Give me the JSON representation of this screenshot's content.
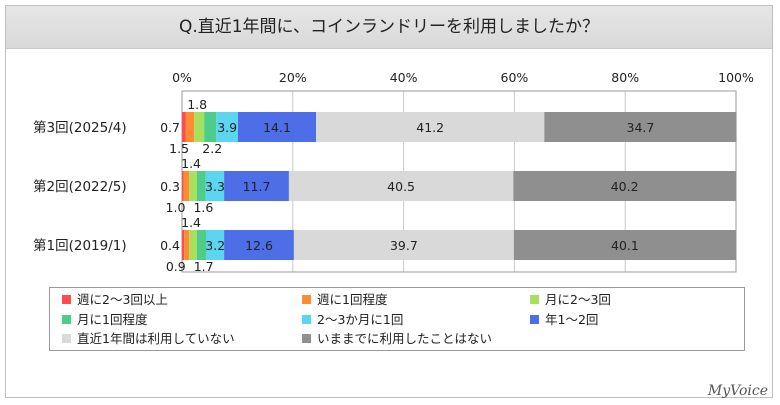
{
  "title": "Q.直近1年間に、コインランドリーを利用しましたか？",
  "brand": "MyVoice",
  "colors": {
    "s1": "#ff4d4d",
    "s2": "#ff8c33",
    "s3": "#a6e05c",
    "s4": "#4dcc8c",
    "s5": "#5cd6f0",
    "s6": "#4d6ee6",
    "s7": "#d9d9d9",
    "s8": "#8f8f8f"
  },
  "chart_data": {
    "type": "bar",
    "orientation": "horizontal",
    "stacked": "percent",
    "title": "Q.直近1年間に、コインランドリーを利用しましたか？",
    "categories": [
      "第3回(2025/4)",
      "第2回(2022/5)",
      "第1回(2019/1)"
    ],
    "xlim": [
      0,
      100
    ],
    "ticks": [
      "0%",
      "20%",
      "40%",
      "60%",
      "80%",
      "100%"
    ],
    "tick_values": [
      0,
      20,
      40,
      60,
      80,
      100
    ],
    "grid": true,
    "legend_position": "bottom",
    "series": [
      {
        "name": "週に2～3回以上",
        "values": [
          0.7,
          0.3,
          0.4
        ],
        "labels": [
          "0.7",
          "0.3",
          "0.4"
        ]
      },
      {
        "name": "週に1回程度",
        "values": [
          1.5,
          1.0,
          0.9
        ],
        "labels": [
          "1.5",
          "1.0",
          "0.9"
        ]
      },
      {
        "name": "月に2～3回",
        "values": [
          1.8,
          1.4,
          1.4
        ],
        "labels": [
          "1.8",
          "1.4",
          "1.4"
        ]
      },
      {
        "name": "月に1回程度",
        "values": [
          2.2,
          1.6,
          1.7
        ],
        "labels": [
          "2.2",
          "1.6",
          "1.7"
        ]
      },
      {
        "name": "2～3か月に1回",
        "values": [
          3.9,
          3.3,
          3.2
        ],
        "labels": [
          "3.9",
          "3.3",
          "3.2"
        ]
      },
      {
        "name": "年1～2回",
        "values": [
          14.1,
          11.7,
          12.6
        ],
        "labels": [
          "14.1",
          "11.7",
          "12.6"
        ]
      },
      {
        "name": "直近1年間は利用していない",
        "values": [
          41.2,
          40.5,
          39.7
        ],
        "labels": [
          "41.2",
          "40.5",
          "39.7"
        ]
      },
      {
        "name": "いままでに利用したことはない",
        "values": [
          34.7,
          40.2,
          40.1
        ],
        "labels": [
          "34.7",
          "40.2",
          "40.1"
        ]
      }
    ]
  }
}
